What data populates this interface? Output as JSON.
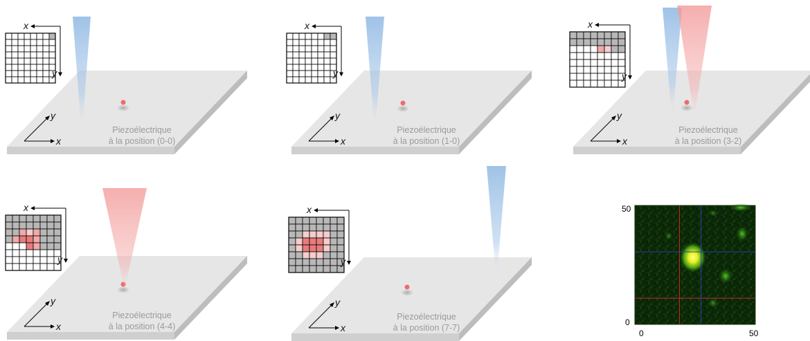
{
  "axes": {
    "x": "x",
    "y": "y"
  },
  "panels": [
    {
      "id": "p1",
      "label_line1": "Piezoélectrique",
      "label_line2": "à la position (0-0)",
      "beams": [
        "blue"
      ],
      "grid_colors": [
        "wwwwwwwg",
        "wwwwwwww",
        "wwwwwwww",
        "wwwwwwww",
        "wwwwwwww",
        "wwwwwwww",
        "wwwwwwww",
        "wwwwwwww"
      ]
    },
    {
      "id": "p2",
      "label_line1": "Piezoélectrique",
      "label_line2": "à la position (1-0)",
      "beams": [
        "blue"
      ],
      "grid_colors": [
        "wwwwwwgg",
        "wwwwwwww",
        "wwwwwwww",
        "wwwwwwww",
        "wwwwwwww",
        "wwwwwwww",
        "wwwwwwww",
        "wwwwwwww"
      ]
    },
    {
      "id": "p3",
      "label_line1": "Piezoélectrique",
      "label_line2": "à la position (3-2)",
      "beams": [
        "blue",
        "red"
      ],
      "grid_colors": [
        "gggggggg",
        "gggggggg",
        "wwwwplgg",
        "wwwwwwww",
        "wwwwwwww",
        "wwwwwwww",
        "wwwwwwww",
        "wwwwwwww"
      ]
    },
    {
      "id": "p4",
      "label_line1": "Piezoélectrique",
      "label_line2": "à la position (4-4)",
      "beams": [
        "red"
      ],
      "grid_colors": [
        "gggggggg",
        "gggggggg",
        "ggplpggg",
        "gpRRpggg",
        "wwwRpggg",
        "wwwwwwww",
        "wwwwwwww",
        "wwwwwwww"
      ]
    },
    {
      "id": "p5",
      "label_line1": "Piezoélectrique",
      "label_line2": "à la position (7-7)",
      "beams": [
        "blue"
      ],
      "grid_colors": [
        "gggggggg",
        "gggggggg",
        "ggllllgg",
        "glRRRlgg",
        "glRRRlgg",
        "gglllggg",
        "gggggggg",
        "gggggggg"
      ]
    }
  ],
  "micrograph": {
    "x_tick_min": "0",
    "x_tick_max": "50",
    "y_tick_min": "0",
    "y_tick_max": "50",
    "crosshair_red": [
      0.37,
      0.78
    ],
    "crosshair_blue": [
      0.55,
      0.39
    ]
  },
  "colors": {
    "grey": "#b8b8b8",
    "white": "#ffffff",
    "pink_light": "#f6cccc",
    "pink": "#f2a9a9",
    "red_cell": "#ea7b7b",
    "blue_beam": "#9cc0e6",
    "red_beam": "#f5a0a0",
    "dot": "#ef6b6b"
  }
}
